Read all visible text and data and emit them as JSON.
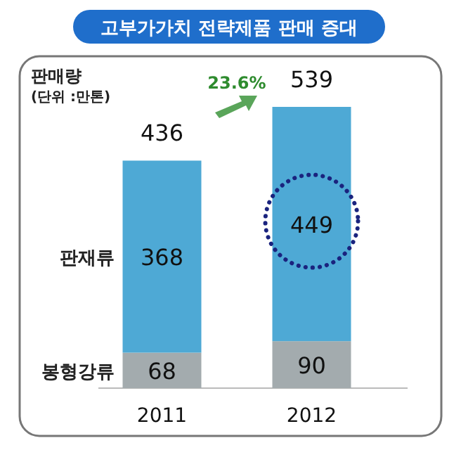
{
  "chart_data": {
    "type": "bar",
    "title": "고부가가치 전략제품 판매 증대",
    "ylabel": "판매량",
    "stacked": true,
    "data_labels": true,
    "categories": [
      "2011",
      "2012"
    ],
    "series": [
      {
        "name": "봉형강류",
        "color": "#a3abae",
        "values": [
          68,
          90
        ]
      },
      {
        "name": "판재류",
        "color": "#4ea9d5",
        "values": [
          368,
          449
        ]
      }
    ],
    "totals": [
      "436",
      "539"
    ],
    "annotations": [
      "(단위 :만톤)",
      "23.6%"
    ]
  }
}
